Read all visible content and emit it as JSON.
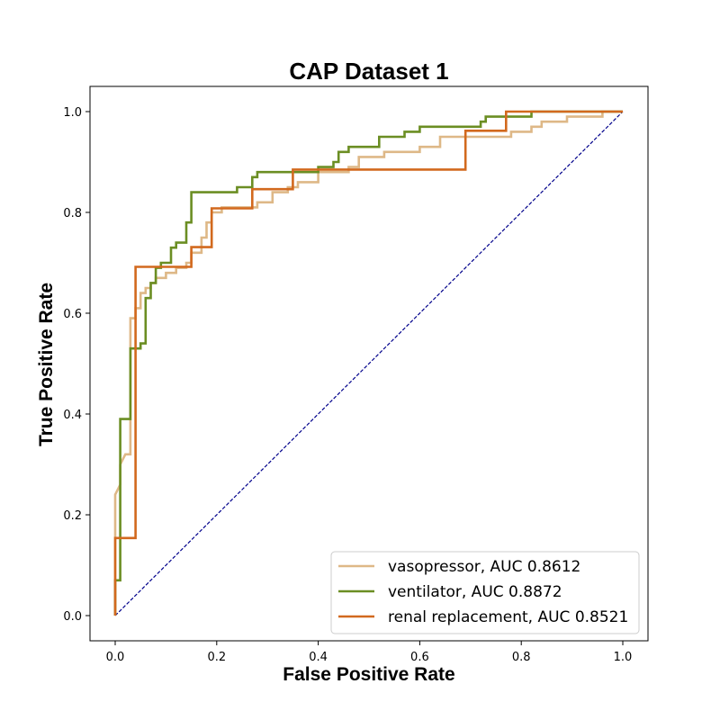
{
  "chart_data": {
    "type": "line",
    "title": "CAP Dataset 1",
    "xlabel": "False Positive Rate",
    "ylabel": "True Positive Rate",
    "xlim": [
      -0.05,
      1.05
    ],
    "ylim": [
      -0.05,
      1.05
    ],
    "x_ticks": [
      "0.0",
      "0.2",
      "0.4",
      "0.6",
      "0.8",
      "1.0"
    ],
    "y_ticks": [
      "0.0",
      "0.2",
      "0.4",
      "0.6",
      "0.8",
      "1.0"
    ],
    "legend_position": "lower-right",
    "series": [
      {
        "name": "vasopressor, AUC 0.8612",
        "color": "#deb887",
        "points": [
          [
            0,
            0
          ],
          [
            0,
            0.24
          ],
          [
            0.01,
            0.26
          ],
          [
            0.01,
            0.3
          ],
          [
            0.02,
            0.32
          ],
          [
            0.03,
            0.32
          ],
          [
            0.03,
            0.59
          ],
          [
            0.04,
            0.59
          ],
          [
            0.04,
            0.61
          ],
          [
            0.05,
            0.61
          ],
          [
            0.05,
            0.64
          ],
          [
            0.06,
            0.64
          ],
          [
            0.06,
            0.65
          ],
          [
            0.07,
            0.65
          ],
          [
            0.07,
            0.66
          ],
          [
            0.08,
            0.66
          ],
          [
            0.08,
            0.67
          ],
          [
            0.1,
            0.67
          ],
          [
            0.1,
            0.68
          ],
          [
            0.12,
            0.68
          ],
          [
            0.12,
            0.69
          ],
          [
            0.14,
            0.69
          ],
          [
            0.14,
            0.7
          ],
          [
            0.15,
            0.7
          ],
          [
            0.15,
            0.72
          ],
          [
            0.17,
            0.72
          ],
          [
            0.17,
            0.75
          ],
          [
            0.18,
            0.75
          ],
          [
            0.18,
            0.78
          ],
          [
            0.19,
            0.78
          ],
          [
            0.19,
            0.8
          ],
          [
            0.21,
            0.8
          ],
          [
            0.21,
            0.81
          ],
          [
            0.28,
            0.81
          ],
          [
            0.28,
            0.82
          ],
          [
            0.31,
            0.82
          ],
          [
            0.31,
            0.84
          ],
          [
            0.34,
            0.84
          ],
          [
            0.34,
            0.85
          ],
          [
            0.36,
            0.85
          ],
          [
            0.36,
            0.86
          ],
          [
            0.4,
            0.86
          ],
          [
            0.4,
            0.88
          ],
          [
            0.46,
            0.88
          ],
          [
            0.46,
            0.89
          ],
          [
            0.48,
            0.89
          ],
          [
            0.48,
            0.91
          ],
          [
            0.53,
            0.91
          ],
          [
            0.53,
            0.92
          ],
          [
            0.6,
            0.92
          ],
          [
            0.6,
            0.93
          ],
          [
            0.64,
            0.93
          ],
          [
            0.64,
            0.95
          ],
          [
            0.78,
            0.95
          ],
          [
            0.78,
            0.96
          ],
          [
            0.82,
            0.96
          ],
          [
            0.82,
            0.97
          ],
          [
            0.84,
            0.97
          ],
          [
            0.84,
            0.98
          ],
          [
            0.89,
            0.98
          ],
          [
            0.89,
            0.99
          ],
          [
            0.96,
            0.99
          ],
          [
            0.96,
            1.0
          ],
          [
            1.0,
            1.0
          ]
        ]
      },
      {
        "name": "ventilator, AUC 0.8872",
        "color": "#6b8e23",
        "points": [
          [
            0,
            0
          ],
          [
            0,
            0.07
          ],
          [
            0.01,
            0.07
          ],
          [
            0.01,
            0.39
          ],
          [
            0.03,
            0.39
          ],
          [
            0.03,
            0.53
          ],
          [
            0.05,
            0.53
          ],
          [
            0.05,
            0.54
          ],
          [
            0.06,
            0.54
          ],
          [
            0.06,
            0.63
          ],
          [
            0.07,
            0.63
          ],
          [
            0.07,
            0.66
          ],
          [
            0.08,
            0.66
          ],
          [
            0.08,
            0.69
          ],
          [
            0.09,
            0.69
          ],
          [
            0.09,
            0.7
          ],
          [
            0.11,
            0.7
          ],
          [
            0.11,
            0.73
          ],
          [
            0.12,
            0.73
          ],
          [
            0.12,
            0.74
          ],
          [
            0.14,
            0.74
          ],
          [
            0.14,
            0.78
          ],
          [
            0.15,
            0.78
          ],
          [
            0.15,
            0.84
          ],
          [
            0.24,
            0.84
          ],
          [
            0.24,
            0.85
          ],
          [
            0.27,
            0.85
          ],
          [
            0.27,
            0.87
          ],
          [
            0.28,
            0.87
          ],
          [
            0.28,
            0.88
          ],
          [
            0.4,
            0.88
          ],
          [
            0.4,
            0.89
          ],
          [
            0.43,
            0.89
          ],
          [
            0.43,
            0.9
          ],
          [
            0.44,
            0.9
          ],
          [
            0.44,
            0.92
          ],
          [
            0.46,
            0.92
          ],
          [
            0.46,
            0.93
          ],
          [
            0.52,
            0.93
          ],
          [
            0.52,
            0.95
          ],
          [
            0.57,
            0.95
          ],
          [
            0.57,
            0.96
          ],
          [
            0.6,
            0.96
          ],
          [
            0.6,
            0.97
          ],
          [
            0.72,
            0.97
          ],
          [
            0.72,
            0.98
          ],
          [
            0.73,
            0.98
          ],
          [
            0.73,
            0.99
          ],
          [
            0.82,
            0.99
          ],
          [
            0.82,
            1.0
          ],
          [
            1.0,
            1.0
          ]
        ]
      },
      {
        "name": "renal replacement, AUC 0.8521",
        "color": "#d2691e",
        "points": [
          [
            0,
            0
          ],
          [
            0,
            0.154
          ],
          [
            0.04,
            0.154
          ],
          [
            0.04,
            0.692
          ],
          [
            0.15,
            0.692
          ],
          [
            0.15,
            0.731
          ],
          [
            0.19,
            0.731
          ],
          [
            0.19,
            0.808
          ],
          [
            0.27,
            0.808
          ],
          [
            0.27,
            0.846
          ],
          [
            0.35,
            0.846
          ],
          [
            0.35,
            0.885
          ],
          [
            0.69,
            0.885
          ],
          [
            0.69,
            0.962
          ],
          [
            0.77,
            0.962
          ],
          [
            0.77,
            1.0
          ],
          [
            1.0,
            1.0
          ]
        ]
      }
    ],
    "diagonal": {
      "color": "#00008b",
      "points": [
        [
          0,
          0
        ],
        [
          1,
          1
        ]
      ]
    }
  }
}
